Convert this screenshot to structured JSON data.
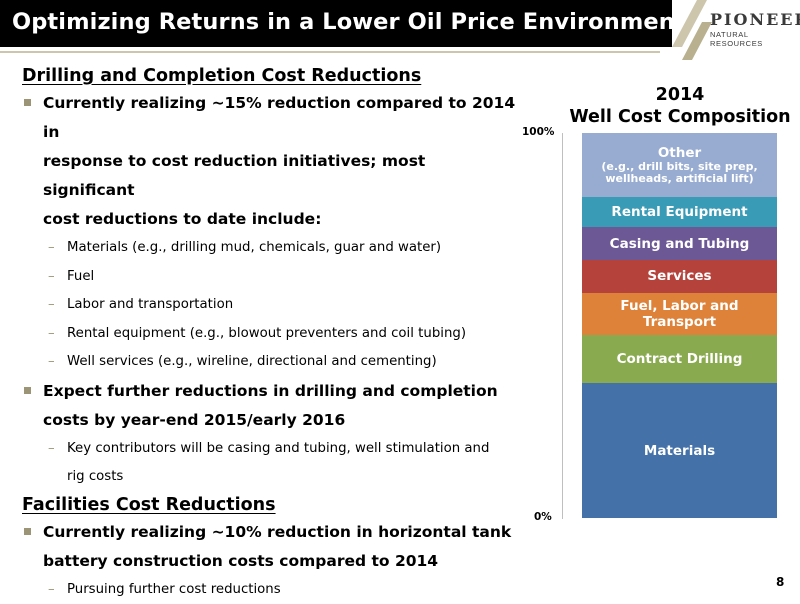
{
  "header": {
    "title": "Optimizing Returns in a Lower Oil Price Environment",
    "logo_name": "PIONEER",
    "logo_sub": "NATURAL RESOURCES",
    "bar_color": "#000000",
    "accent_color": "#cdc6ad"
  },
  "sections": {
    "drilling": {
      "heading": "Drilling and Completion Cost Reductions",
      "bullet1": {
        "lines": [
          "Currently realizing ~15% reduction compared to 2014 in",
          "response to cost reduction initiatives; most significant",
          "cost reductions to date include:"
        ],
        "subs": [
          "Materials (e.g., drilling mud, chemicals, guar and water)",
          "Fuel",
          "Labor and transportation",
          "Rental equipment (e.g., blowout preventers and coil tubing)",
          "Well services (e.g., wireline, directional and cementing)"
        ]
      },
      "bullet2": {
        "lines": [
          "Expect further reductions in drilling and completion",
          "costs by year-end 2015/early 2016"
        ],
        "subs": [
          "Key contributors will be casing and tubing, well stimulation and",
          "rig costs"
        ]
      }
    },
    "facilities": {
      "heading": "Facilities Cost Reductions",
      "bullet1": {
        "lines": [
          "Currently realizing ~10% reduction in horizontal tank",
          "battery construction costs compared to 2014"
        ],
        "subs": [
          "Pursuing further cost reductions"
        ]
      }
    }
  },
  "chart_data": {
    "type": "bar",
    "stacked": true,
    "title_lines": [
      "2014",
      "Well Cost Composition"
    ],
    "ylim": [
      0,
      100
    ],
    "y_tick_labels": [
      "100%",
      "0%"
    ],
    "series": [
      {
        "name": "Materials",
        "value": 35,
        "color": "#4472a8"
      },
      {
        "name": "Contract Drilling",
        "value": 12.5,
        "color": "#8aaa50"
      },
      {
        "name": "Fuel, Labor and Transport",
        "value": 11,
        "color": "#de8239"
      },
      {
        "name": "Services",
        "value": 8.5,
        "color": "#b5433c"
      },
      {
        "name": "Casing and Tubing",
        "value": 8.5,
        "color": "#6d5896"
      },
      {
        "name": "Rental Equipment",
        "value": 8,
        "color": "#3a9bb6"
      },
      {
        "name": "Other",
        "note_lines": [
          "(e.g., drill bits, site prep,",
          "wellheads, artificial lift)"
        ],
        "value": 16.5,
        "color": "#98acd2"
      }
    ]
  },
  "footer": {
    "page_number": "8"
  }
}
